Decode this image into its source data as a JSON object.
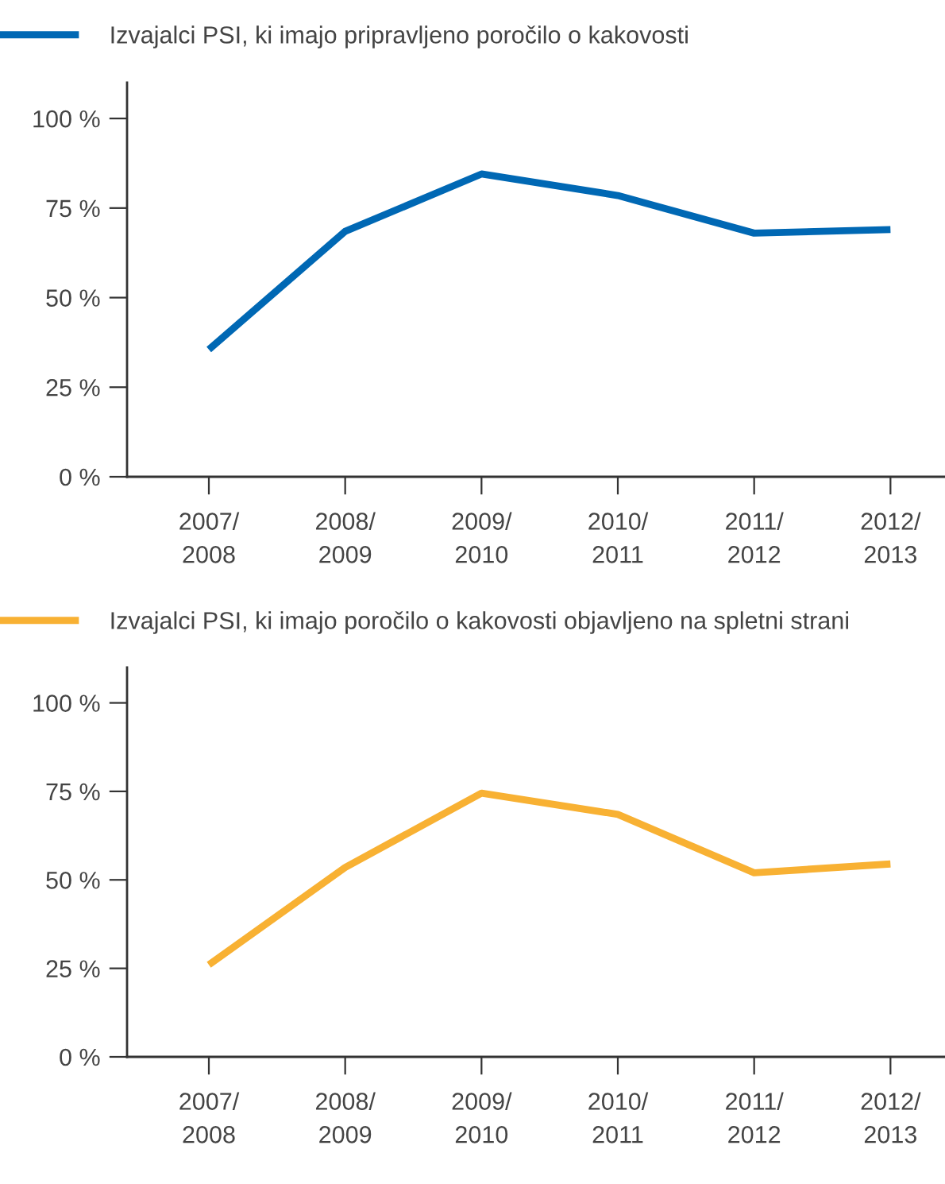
{
  "chart_data": [
    {
      "type": "line",
      "categories": [
        "2007/\n2008",
        "2008/\n2009",
        "2009/\n2010",
        "2010/\n2011",
        "2011/\n2012",
        "2012/\n2013"
      ],
      "series": [
        {
          "name": "Izvajalci PSI, ki imajo pripravljeno poročilo o kakovosti",
          "color": "#0068b4",
          "values": [
            35.5,
            68.5,
            84.5,
            78.5,
            68,
            69
          ]
        }
      ],
      "ylim": [
        0,
        110
      ],
      "yticks": [
        {
          "value": 0,
          "label": "0 %"
        },
        {
          "value": 25,
          "label": "25 %"
        },
        {
          "value": 50,
          "label": "50 %"
        },
        {
          "value": 75,
          "label": "75 %"
        },
        {
          "value": 100,
          "label": "100 %"
        }
      ],
      "grid": false,
      "legend": "top left",
      "marker": "none",
      "line_style": "solid"
    },
    {
      "type": "line",
      "categories": [
        "2007/\n2008",
        "2008/\n2009",
        "2009/\n2010",
        "2010/\n2011",
        "2011/\n2012",
        "2012/\n2013"
      ],
      "series": [
        {
          "name": "Izvajalci PSI, ki imajo poročilo o kakovosti objavljeno na spletni strani",
          "color": "#f8b133",
          "values": [
            26,
            53.5,
            74.5,
            68.5,
            52,
            54.5
          ]
        }
      ],
      "ylim": [
        0,
        110
      ],
      "yticks": [
        {
          "value": 0,
          "label": "0 %"
        },
        {
          "value": 25,
          "label": "25 %"
        },
        {
          "value": 50,
          "label": "50 %"
        },
        {
          "value": 75,
          "label": "75 %"
        },
        {
          "value": 100,
          "label": "100 %"
        }
      ],
      "grid": false,
      "legend": "top left",
      "marker": "none",
      "line_style": "solid"
    }
  ]
}
